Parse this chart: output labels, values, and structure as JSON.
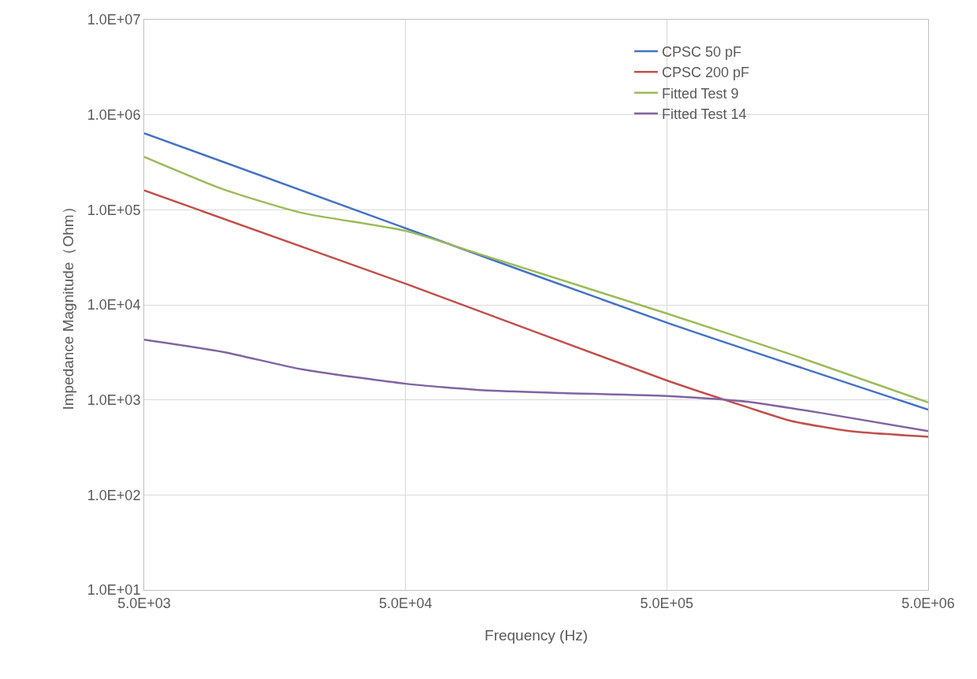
{
  "chart_data": {
    "type": "line",
    "xlabel": "Frequency (Hz)",
    "ylabel": "Impedance Magnitude（Ohm）",
    "log": "xy",
    "grid": true,
    "legend": "top right",
    "marker": "none",
    "line_style": "solid",
    "xlim": [
      5000,
      5000000
    ],
    "xticks": [
      {
        "value": 5000,
        "label": "5.0E+03"
      },
      {
        "value": 50000,
        "label": "5.0E+04"
      },
      {
        "value": 500000,
        "label": "5.0E+05"
      },
      {
        "value": 5000000,
        "label": "5.0E+06"
      }
    ],
    "ylim": [
      10,
      10000000
    ],
    "yticks": [
      {
        "value": 10,
        "label": "1.0E+01"
      },
      {
        "value": 100,
        "label": "1.0E+02"
      },
      {
        "value": 1000,
        "label": "1.0E+03"
      },
      {
        "value": 10000,
        "label": "1.0E+04"
      },
      {
        "value": 100000,
        "label": "1.0E+05"
      },
      {
        "value": 1000000,
        "label": "1.0E+06"
      },
      {
        "value": 10000000,
        "label": "1.0E+07"
      }
    ],
    "series": [
      {
        "name": "CPSC 50 pF",
        "color": "#4472c4",
        "x": [
          5000,
          50000,
          500000,
          5000000
        ],
        "values": [
          640000,
          64000,
          6500,
          790
        ]
      },
      {
        "name": "CPSC 200 pF",
        "color": "#c0504d",
        "x": [
          5000,
          50000,
          500000,
          1000000,
          1500000,
          2500000,
          5000000
        ],
        "values": [
          160000,
          16700,
          1600,
          850,
          600,
          470,
          410
        ]
      },
      {
        "name": "Fitted Test 9",
        "color": "#9bbb59",
        "x": [
          5000,
          10000,
          20000,
          50000,
          100000,
          500000,
          1500000,
          5000000
        ],
        "values": [
          360000,
          165000,
          93000,
          60000,
          33000,
          8100,
          3000,
          940
        ]
      },
      {
        "name": "Fitted Test 14",
        "color": "#8064a2",
        "x": [
          5000,
          10000,
          20000,
          50000,
          100000,
          200000,
          500000,
          1000000,
          2000000,
          5000000
        ],
        "values": [
          4300,
          3200,
          2100,
          1480,
          1260,
          1180,
          1100,
          960,
          720,
          470
        ]
      }
    ]
  }
}
